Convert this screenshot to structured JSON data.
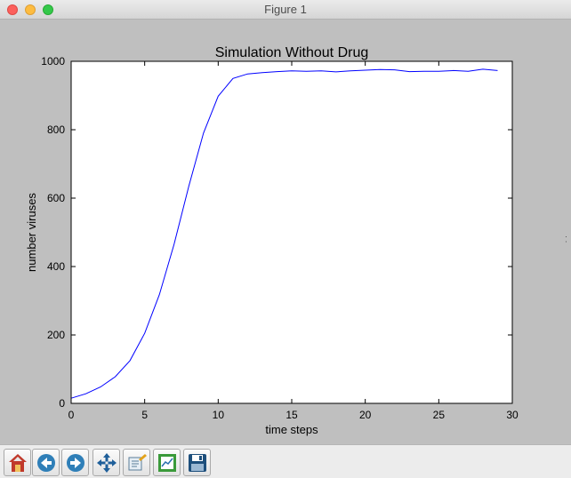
{
  "window": {
    "title": "Figure 1"
  },
  "chart_data": {
    "type": "line",
    "title": "Simulation Without Drug",
    "xlabel": "time steps",
    "ylabel": "number viruses",
    "xlim": [
      0,
      30
    ],
    "ylim": [
      0,
      1000
    ],
    "xticks": [
      0,
      5,
      10,
      15,
      20,
      25,
      30
    ],
    "yticks": [
      0,
      200,
      400,
      600,
      800,
      1000
    ],
    "grid": false,
    "series": [
      {
        "color": "#0000ff",
        "x": [
          0,
          1,
          2,
          3,
          4,
          5,
          6,
          7,
          8,
          9,
          10,
          11,
          12,
          13,
          14,
          15,
          16,
          17,
          18,
          19,
          20,
          21,
          22,
          23,
          24,
          25,
          26,
          27,
          28,
          29
        ],
        "y": [
          15,
          28,
          48,
          78,
          125,
          205,
          318,
          465,
          635,
          790,
          898,
          950,
          963,
          967,
          970,
          972,
          971,
          972,
          969,
          972,
          974,
          976,
          975,
          970,
          971,
          971,
          973,
          971,
          977,
          973
        ]
      }
    ]
  },
  "toolbar": {
    "buttons": [
      {
        "name": "home-button",
        "icon": "home-icon"
      },
      {
        "name": "back-button",
        "icon": "back-arrow-icon"
      },
      {
        "name": "forward-button",
        "icon": "forward-arrow-icon"
      },
      {
        "name": "pan-button",
        "icon": "move-arrows-icon"
      },
      {
        "name": "zoom-button",
        "icon": "zoom-rect-icon"
      },
      {
        "name": "subplots-button",
        "icon": "subplots-icon"
      },
      {
        "name": "save-button",
        "icon": "floppy-disk-icon"
      }
    ]
  },
  "colors": {
    "line": "#0000ff",
    "figure_bg": "#bfbfbf",
    "axes_bg": "#ffffff"
  }
}
